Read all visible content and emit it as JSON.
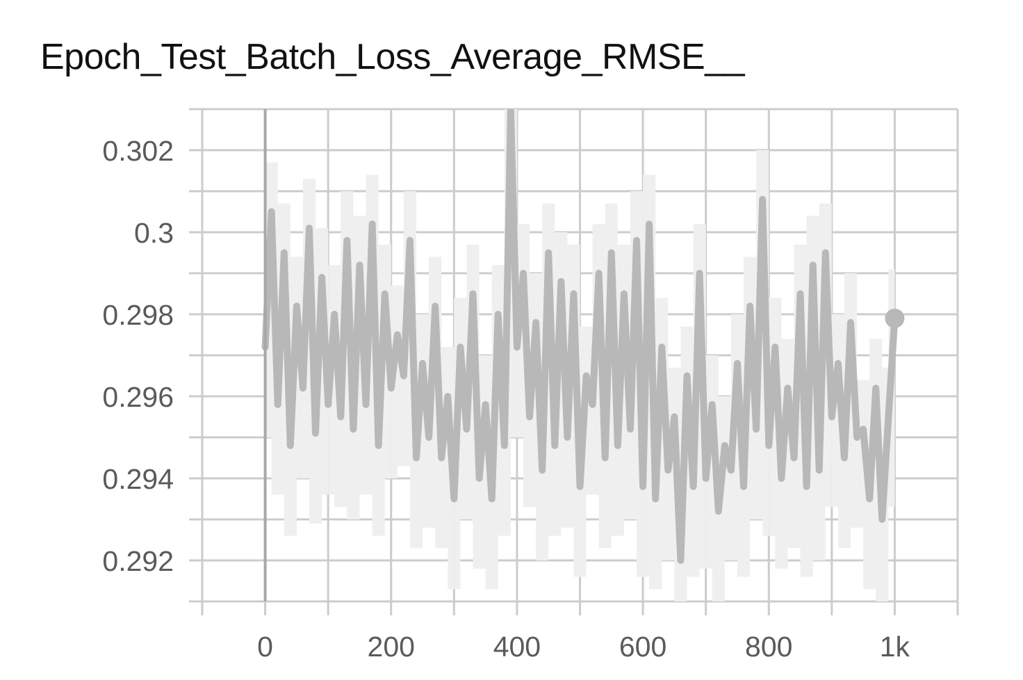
{
  "chart_data": {
    "type": "line",
    "title": "Epoch_Test_Batch_Loss_Average_RMSE__",
    "xlabel": "",
    "ylabel": "",
    "xlim": [
      -100,
      1100
    ],
    "ylim": [
      0.291,
      0.303
    ],
    "grid": true,
    "x_ticks": [
      {
        "value": 0,
        "label": "0"
      },
      {
        "value": 200,
        "label": "200"
      },
      {
        "value": 400,
        "label": "400"
      },
      {
        "value": 600,
        "label": "600"
      },
      {
        "value": 800,
        "label": "800"
      },
      {
        "value": 1000,
        "label": "1k"
      }
    ],
    "y_ticks": [
      {
        "value": 0.292,
        "label": "0.292"
      },
      {
        "value": 0.294,
        "label": "0.294"
      },
      {
        "value": 0.296,
        "label": "0.296"
      },
      {
        "value": 0.298,
        "label": "0.298"
      },
      {
        "value": 0.3,
        "label": "0.3"
      },
      {
        "value": 0.302,
        "label": "0.302"
      }
    ],
    "colors": {
      "smoothed": "#b8b8b8",
      "raw": "#efefef",
      "grid": "#cccccc"
    },
    "series": [
      {
        "x": [
          0,
          10,
          20,
          30,
          40,
          50,
          60,
          70,
          80,
          90,
          100,
          110,
          120,
          130,
          140,
          150,
          160,
          170,
          180,
          190,
          200,
          210,
          220,
          230,
          240,
          250,
          260,
          270,
          280,
          290,
          300,
          310,
          320,
          330,
          340,
          350,
          360,
          370,
          380,
          390,
          400,
          410,
          420,
          430,
          440,
          450,
          460,
          470,
          480,
          490,
          500,
          510,
          520,
          530,
          540,
          550,
          560,
          570,
          580,
          590,
          600,
          610,
          620,
          630,
          640,
          650,
          660,
          670,
          680,
          690,
          700,
          710,
          720,
          730,
          740,
          750,
          760,
          770,
          780,
          790,
          800,
          810,
          820,
          830,
          840,
          850,
          860,
          870,
          880,
          890,
          900,
          910,
          920,
          930,
          940,
          950,
          960,
          970,
          980,
          990,
          1000
        ],
        "y": [
          0.2972,
          0.3005,
          0.2958,
          0.2995,
          0.2948,
          0.2982,
          0.2962,
          0.3001,
          0.2951,
          0.2989,
          0.2958,
          0.298,
          0.2955,
          0.2998,
          0.2952,
          0.2992,
          0.2958,
          0.3002,
          0.2948,
          0.2985,
          0.2962,
          0.2975,
          0.2965,
          0.2998,
          0.2945,
          0.2968,
          0.295,
          0.2982,
          0.2945,
          0.296,
          0.2935,
          0.2972,
          0.2952,
          0.2985,
          0.294,
          0.2958,
          0.2935,
          0.298,
          0.2948,
          0.303,
          0.2972,
          0.299,
          0.2955,
          0.2978,
          0.2942,
          0.2995,
          0.2948,
          0.2988,
          0.295,
          0.2985,
          0.2938,
          0.2965,
          0.2958,
          0.299,
          0.2945,
          0.2995,
          0.2948,
          0.2985,
          0.2952,
          0.2998,
          0.2938,
          0.3002,
          0.2935,
          0.2972,
          0.2942,
          0.2955,
          0.292,
          0.2965,
          0.2938,
          0.299,
          0.294,
          0.2958,
          0.2932,
          0.2948,
          0.2942,
          0.2968,
          0.2938,
          0.2982,
          0.2952,
          0.3008,
          0.2948,
          0.2972,
          0.294,
          0.2962,
          0.2945,
          0.2985,
          0.2938,
          0.2992,
          0.2942,
          0.2995,
          0.2955,
          0.2968,
          0.2945,
          0.2978,
          0.295,
          0.2952,
          0.2935,
          0.2962,
          0.293,
          0.2955,
          0.2979
        ]
      }
    ]
  }
}
